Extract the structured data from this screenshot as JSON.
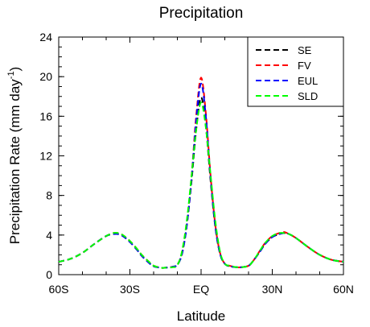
{
  "chart_data": {
    "type": "line",
    "title": "Precipitation",
    "xlabel": "Latitude",
    "ylabel": {
      "main": "Precipitation Rate (mm day",
      "superscript": "-1",
      "close": ")"
    },
    "xlim": [
      -60,
      60
    ],
    "ylim": [
      0,
      24
    ],
    "x_ticks": [
      {
        "value": -60,
        "label": "60S"
      },
      {
        "value": -30,
        "label": "30S"
      },
      {
        "value": 0,
        "label": "EQ"
      },
      {
        "value": 30,
        "label": "30N"
      },
      {
        "value": 60,
        "label": "60N"
      }
    ],
    "y_ticks": [
      {
        "value": 0,
        "label": "0"
      },
      {
        "value": 4,
        "label": "4"
      },
      {
        "value": 8,
        "label": "8"
      },
      {
        "value": 12,
        "label": "12"
      },
      {
        "value": 16,
        "label": "16"
      },
      {
        "value": 20,
        "label": "20"
      },
      {
        "value": 24,
        "label": "24"
      }
    ],
    "legend_position": "top-right",
    "grid": false,
    "x": [
      -60,
      -55,
      -50,
      -45,
      -40,
      -37,
      -35,
      -33,
      -30,
      -27,
      -25,
      -22,
      -20,
      -17,
      -15,
      -12,
      -10,
      -8,
      -6,
      -4,
      -2,
      0,
      2,
      4,
      6,
      8,
      10,
      12,
      15,
      17,
      20,
      22,
      25,
      27,
      30,
      33,
      35,
      37,
      40,
      45,
      50,
      55,
      60
    ],
    "series": [
      {
        "name": "SE",
        "color": "#000000",
        "values": [
          1.3,
          1.6,
          2.2,
          3.1,
          3.9,
          4.1,
          4.1,
          3.9,
          3.3,
          2.5,
          1.9,
          1.2,
          0.85,
          0.7,
          0.7,
          0.8,
          1.0,
          2.2,
          5.0,
          9.5,
          14.8,
          17.9,
          15.0,
          9.5,
          4.8,
          2.1,
          1.1,
          0.85,
          0.75,
          0.75,
          0.9,
          1.4,
          2.4,
          3.1,
          3.8,
          4.1,
          4.2,
          4.1,
          3.7,
          2.8,
          2.0,
          1.5,
          1.3
        ]
      },
      {
        "name": "FV",
        "color": "#ff0000",
        "values": [
          1.3,
          1.6,
          2.2,
          3.1,
          3.9,
          4.2,
          4.2,
          4.0,
          3.4,
          2.6,
          2.0,
          1.3,
          0.9,
          0.7,
          0.7,
          0.8,
          1.0,
          2.2,
          5.2,
          10.0,
          16.2,
          19.9,
          16.3,
          10.0,
          5.0,
          2.2,
          1.1,
          0.9,
          0.75,
          0.75,
          0.9,
          1.4,
          2.5,
          3.2,
          3.9,
          4.2,
          4.3,
          4.1,
          3.7,
          2.8,
          2.0,
          1.5,
          1.3
        ]
      },
      {
        "name": "EUL",
        "color": "#0000ff",
        "values": [
          1.3,
          1.6,
          2.2,
          3.1,
          3.9,
          4.1,
          4.1,
          3.9,
          3.3,
          2.5,
          1.9,
          1.2,
          0.85,
          0.7,
          0.7,
          0.8,
          1.0,
          2.1,
          5.0,
          9.8,
          15.8,
          19.3,
          16.0,
          9.8,
          4.9,
          2.1,
          1.1,
          0.85,
          0.75,
          0.75,
          0.9,
          1.4,
          2.4,
          3.1,
          3.8,
          4.1,
          4.2,
          4.1,
          3.7,
          2.8,
          2.0,
          1.5,
          1.3
        ]
      },
      {
        "name": "SLD",
        "color": "#00ff00",
        "values": [
          1.3,
          1.6,
          2.2,
          3.1,
          3.9,
          4.2,
          4.2,
          4.0,
          3.4,
          2.6,
          2.0,
          1.3,
          0.9,
          0.7,
          0.7,
          0.75,
          0.95,
          2.4,
          5.5,
          10.0,
          14.8,
          17.4,
          14.9,
          10.1,
          5.4,
          2.3,
          1.1,
          0.9,
          0.75,
          0.75,
          0.9,
          1.4,
          2.5,
          3.2,
          3.9,
          4.2,
          4.2,
          4.1,
          3.7,
          2.8,
          2.0,
          1.5,
          1.3
        ]
      }
    ]
  }
}
